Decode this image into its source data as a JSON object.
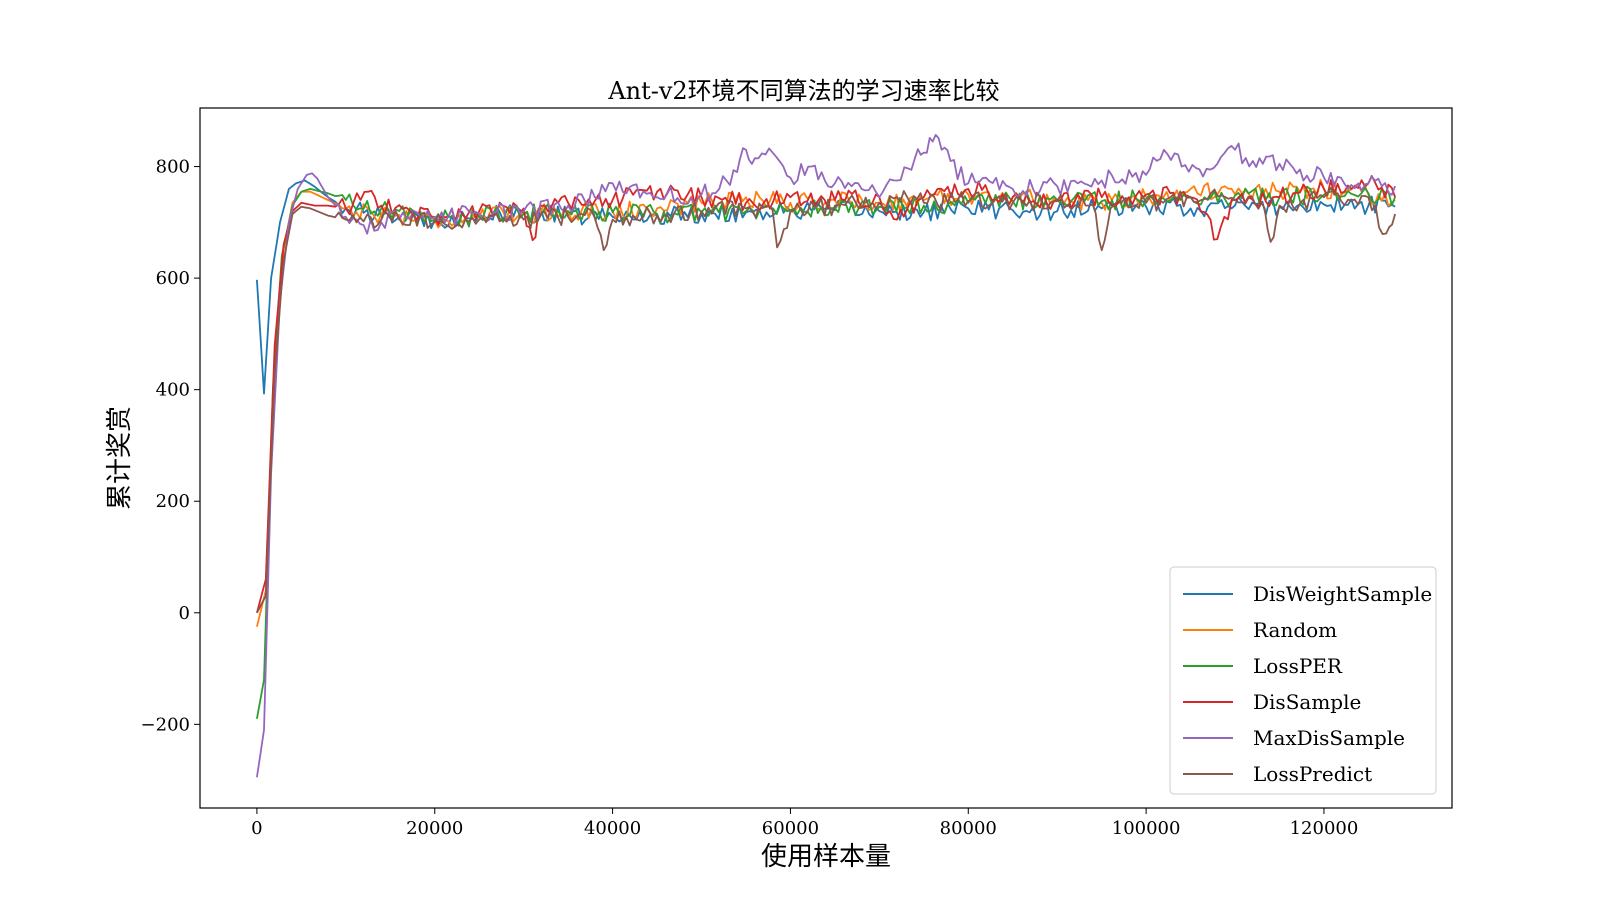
{
  "chart_data": {
    "type": "line",
    "title": "Ant-v2环境不同算法的学习速率比较",
    "xlabel": "使用样本量",
    "ylabel": "累计奖赏",
    "xlim": [
      -6400,
      134400
    ],
    "ylim": [
      -350,
      905
    ],
    "xticks": [
      {
        "value": 0,
        "label": "0"
      },
      {
        "value": 20000,
        "label": "20000"
      },
      {
        "value": 40000,
        "label": "40000"
      },
      {
        "value": 60000,
        "label": "60000"
      },
      {
        "value": 80000,
        "label": "80000"
      },
      {
        "value": 100000,
        "label": "100000"
      },
      {
        "value": 120000,
        "label": "120000"
      }
    ],
    "yticks": [
      {
        "value": -200,
        "label": "−200"
      },
      {
        "value": 0,
        "label": "0"
      },
      {
        "value": 200,
        "label": "200"
      },
      {
        "value": 400,
        "label": "400"
      },
      {
        "value": 600,
        "label": "600"
      },
      {
        "value": 800,
        "label": "800"
      }
    ],
    "grid": false,
    "legend_position": "lower-right",
    "series": [
      {
        "name": "DisWeightSample",
        "color": "#1f77b4",
        "x": [
          0,
          800,
          1600,
          2600,
          3600,
          4400,
          5400,
          6400,
          8000,
          10000,
          14000,
          20000,
          25000,
          30000,
          35000,
          40000,
          45000,
          50000,
          55000,
          60000,
          65000,
          70000,
          75000,
          80000,
          85000,
          90000,
          95000,
          100000,
          105000,
          110000,
          115000,
          120000,
          125000,
          128000
        ],
        "y": [
          597,
          393,
          600,
          700,
          760,
          770,
          775,
          765,
          745,
          725,
          710,
          705,
          712,
          715,
          712,
          710,
          712,
          715,
          718,
          720,
          722,
          720,
          718,
          725,
          722,
          720,
          725,
          728,
          725,
          730,
          728,
          732,
          730,
          728
        ]
      },
      {
        "name": "Random",
        "color": "#ff7f0e",
        "x": [
          0,
          1000,
          2000,
          3000,
          4000,
          5000,
          6000,
          8000,
          10000,
          14000,
          20000,
          25000,
          30000,
          35000,
          40000,
          45000,
          50000,
          55000,
          60000,
          65000,
          70000,
          75000,
          80000,
          85000,
          90000,
          95000,
          100000,
          105000,
          110000,
          115000,
          120000,
          125000,
          128000
        ],
        "y": [
          -25,
          40,
          450,
          650,
          735,
          755,
          755,
          740,
          725,
          715,
          705,
          710,
          715,
          720,
          720,
          725,
          735,
          745,
          735,
          740,
          735,
          740,
          750,
          745,
          740,
          735,
          745,
          760,
          750,
          755,
          760,
          750,
          740
        ]
      },
      {
        "name": "LossPER",
        "color": "#2ca02c",
        "x": [
          0,
          800,
          1800,
          2800,
          4000,
          5000,
          6000,
          8000,
          10000,
          14000,
          20000,
          25000,
          30000,
          35000,
          40000,
          45000,
          50000,
          55000,
          60000,
          65000,
          70000,
          75000,
          80000,
          85000,
          90000,
          95000,
          100000,
          105000,
          110000,
          115000,
          120000,
          125000,
          128000
        ],
        "y": [
          -190,
          -120,
          400,
          640,
          730,
          755,
          760,
          752,
          740,
          725,
          705,
          710,
          715,
          720,
          718,
          715,
          718,
          720,
          722,
          725,
          728,
          730,
          735,
          738,
          740,
          738,
          742,
          745,
          748,
          745,
          750,
          752,
          745
        ]
      },
      {
        "name": "DisSample",
        "color": "#d62728",
        "x": [
          0,
          1000,
          2000,
          3000,
          4000,
          5000,
          6500,
          8000,
          10000,
          12500,
          14000,
          20000,
          25000,
          30000,
          31000,
          32000,
          35000,
          40000,
          45000,
          50000,
          55000,
          60000,
          65000,
          70000,
          72000,
          75000,
          80000,
          85000,
          90000,
          95000,
          100000,
          105000,
          108000,
          110000,
          115000,
          120000,
          125000,
          128000
        ],
        "y": [
          0,
          60,
          480,
          660,
          720,
          735,
          730,
          730,
          725,
          755,
          730,
          710,
          720,
          725,
          668,
          730,
          735,
          740,
          755,
          745,
          735,
          745,
          740,
          745,
          705,
          745,
          760,
          745,
          740,
          745,
          750,
          745,
          670,
          740,
          745,
          760,
          770,
          745
        ]
      },
      {
        "name": "MaxDisSample",
        "color": "#9467bd",
        "x": [
          0,
          800,
          1600,
          2600,
          3600,
          4600,
          5600,
          6200,
          6800,
          8000,
          10000,
          12000,
          14000,
          16000,
          20000,
          25000,
          30000,
          35000,
          38000,
          40000,
          45000,
          50000,
          52000,
          54000,
          55000,
          56000,
          58000,
          60000,
          62000,
          65000,
          68000,
          70000,
          72000,
          74000,
          75000,
          76000,
          77000,
          78000,
          80000,
          82000,
          85000,
          90000,
          95000,
          100000,
          102000,
          104000,
          106000,
          108000,
          110000,
          112000,
          115000,
          120000,
          125000,
          128000
        ],
        "y": [
          -295,
          -210,
          250,
          560,
          700,
          760,
          785,
          788,
          778,
          745,
          710,
          695,
          700,
          705,
          710,
          715,
          720,
          730,
          745,
          770,
          745,
          750,
          760,
          790,
          830,
          815,
          825,
          780,
          800,
          770,
          760,
          745,
          775,
          815,
          825,
          845,
          830,
          810,
          770,
          780,
          760,
          765,
          775,
          785,
          830,
          800,
          795,
          805,
          830,
          810,
          805,
          780,
          770,
          765
        ]
      },
      {
        "name": "LossPredict",
        "color": "#8c564b",
        "x": [
          0,
          1000,
          2000,
          3000,
          4000,
          5000,
          6000,
          8000,
          10000,
          14000,
          20000,
          25000,
          30000,
          35000,
          38000,
          39000,
          40000,
          45000,
          50000,
          55000,
          58000,
          58500,
          60000,
          65000,
          70000,
          72000,
          75000,
          80000,
          85000,
          90000,
          94000,
          95000,
          96000,
          100000,
          105000,
          110000,
          113000,
          114000,
          115000,
          120000,
          125000,
          127000,
          128000
        ],
        "y": [
          0,
          30,
          430,
          630,
          715,
          728,
          725,
          712,
          705,
          705,
          700,
          705,
          705,
          710,
          708,
          650,
          705,
          712,
          720,
          725,
          722,
          655,
          720,
          730,
          735,
          745,
          735,
          738,
          735,
          738,
          732,
          650,
          725,
          735,
          745,
          740,
          735,
          665,
          730,
          745,
          745,
          680,
          715
        ]
      }
    ]
  }
}
